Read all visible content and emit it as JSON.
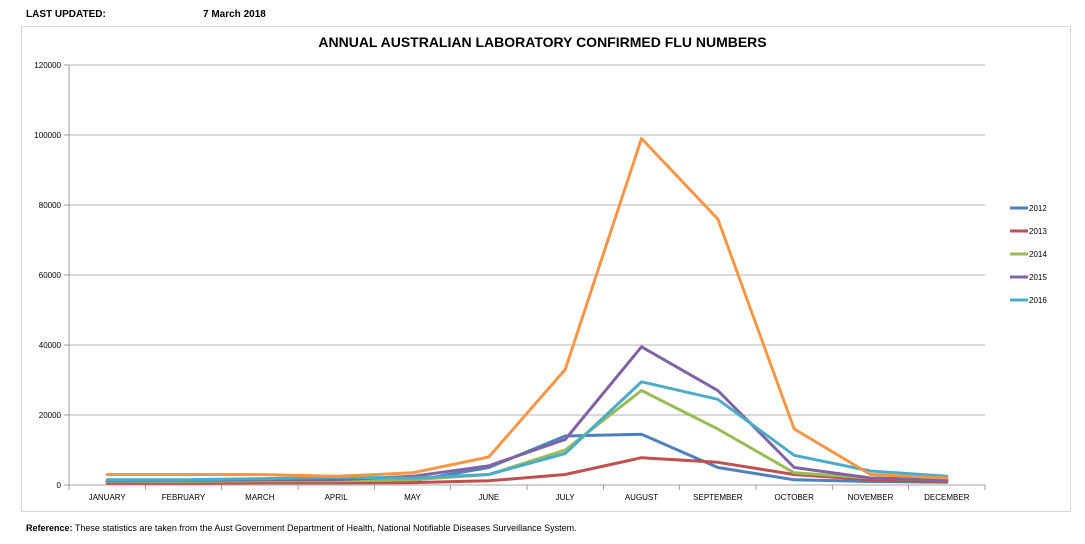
{
  "header": {
    "last_updated_label": "LAST UPDATED:",
    "last_updated_value": "7 March 2018"
  },
  "reference": {
    "label": "Reference:",
    "text": " These statistics are taken from the Aust Government Department of Health, National Notifiable Diseases Surveillance System."
  },
  "chart_data": {
    "type": "line",
    "title": "ANNUAL AUSTRALIAN LABORATORY CONFIRMED FLU NUMBERS",
    "xlabel": "",
    "ylabel": "",
    "ylim": [
      0,
      120000
    ],
    "yticks": [
      0,
      20000,
      40000,
      60000,
      80000,
      100000,
      120000
    ],
    "grid": true,
    "legend": "right",
    "categories": [
      "JANUARY",
      "FEBRUARY",
      "MARCH",
      "APRIL",
      "MAY",
      "JUNE",
      "JULY",
      "AUGUST",
      "SEPTEMBER",
      "OCTOBER",
      "NOVEMBER",
      "DECEMBER"
    ],
    "series": [
      {
        "name": "2012",
        "color": "#4f81bd",
        "values": [
          800,
          900,
          1000,
          1000,
          1200,
          5000,
          14000,
          14500,
          5000,
          1500,
          1000,
          800
        ]
      },
      {
        "name": "2013",
        "color": "#c0504d",
        "values": [
          500,
          500,
          600,
          600,
          700,
          1200,
          3000,
          7800,
          6500,
          3000,
          1500,
          1000
        ]
      },
      {
        "name": "2014",
        "color": "#9bbb59",
        "values": [
          1000,
          1000,
          1200,
          1200,
          1500,
          3000,
          10000,
          27000,
          16000,
          3500,
          2000,
          1500
        ]
      },
      {
        "name": "2015",
        "color": "#8064a2",
        "values": [
          1200,
          1300,
          1500,
          1500,
          2500,
          5500,
          13000,
          39500,
          27000,
          5000,
          2000,
          1500
        ]
      },
      {
        "name": "2016",
        "color": "#4bacc6",
        "values": [
          1500,
          1500,
          1800,
          2200,
          2000,
          3000,
          9000,
          29500,
          24500,
          8500,
          4000,
          2500
        ]
      },
      {
        "name": "",
        "color": "#f79646",
        "values": [
          3000,
          3000,
          3000,
          2500,
          3500,
          8000,
          33000,
          99000,
          76000,
          16000,
          3000,
          2000
        ]
      }
    ]
  }
}
